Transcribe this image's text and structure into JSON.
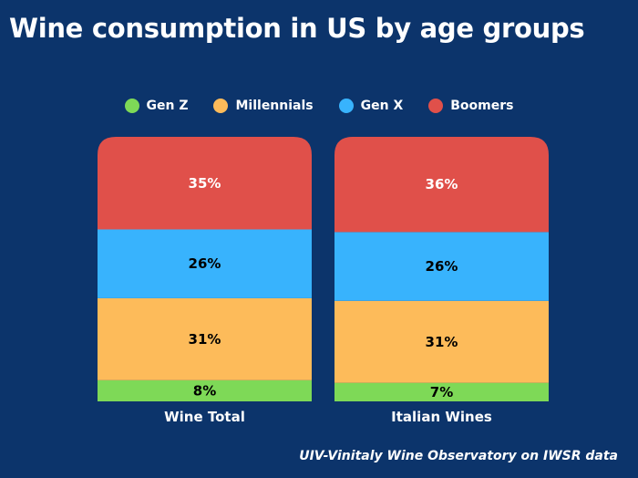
{
  "title": "Wine consumption in US by age groups",
  "footer": "UIV-Vinitaly Wine Observatory on IWSR data",
  "chart_data": {
    "type": "bar",
    "stacked": true,
    "categories": [
      "Wine Total",
      "Italian Wines"
    ],
    "series": [
      {
        "name": "Gen Z",
        "color": "#7ed957",
        "values": [
          8,
          7
        ],
        "labels": [
          "8%",
          "7%"
        ],
        "label_color": "#000000"
      },
      {
        "name": "Millennials",
        "color": "#fdbb5a",
        "values": [
          31,
          31
        ],
        "labels": [
          "31%",
          "31%"
        ],
        "label_color": "#000000"
      },
      {
        "name": "Gen X",
        "color": "#38b3fd",
        "values": [
          26,
          26
        ],
        "labels": [
          "26%",
          "26%"
        ],
        "label_color": "#000000"
      },
      {
        "name": "Boomers",
        "color": "#e0504a",
        "values": [
          35,
          36
        ],
        "labels": [
          "35%",
          "36%"
        ],
        "label_color": "#ffffff"
      }
    ],
    "legend": "top",
    "grid": false,
    "ylim": [
      0,
      100
    ]
  }
}
